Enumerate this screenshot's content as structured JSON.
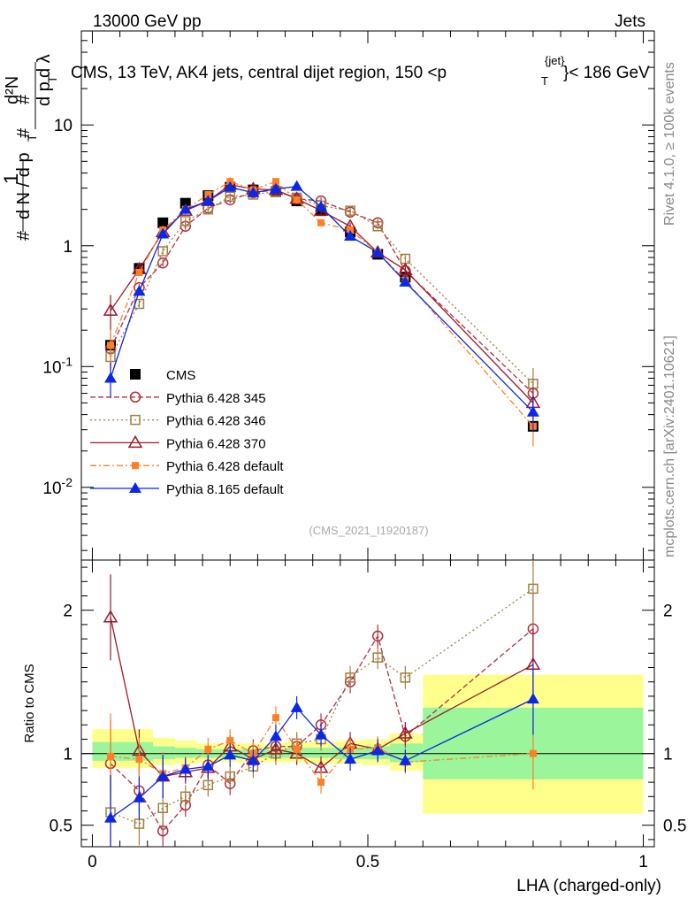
{
  "header": {
    "left": "13000 GeV pp",
    "right": "Jets",
    "title": "CMS, 13 TeV, AK4 jets, central dijet region, 150 <p",
    "title_sup": "{jet}",
    "title_sub": "T",
    "title_end": "}< 186 GeV",
    "ylabel_main": "1/(dN/dp_T) d^2N/(dp_T dλ)",
    "ylabel_ratio": "Ratio to CMS",
    "xlabel": "LHA (charged-only)",
    "side_rivet": "Rivet 4.1.0, ≥ 100k events",
    "side_mcplots": "mcplots.cern.ch [arXiv:2401.10621]",
    "watermark": "(CMS_2021_I1920187)"
  },
  "chart_data": {
    "type": "scatter",
    "main": {
      "xlim": [
        -0.02,
        1.02
      ],
      "ylim_log": [
        0.0025,
        60
      ],
      "ytick_labels": [
        "10^-2",
        "10^-1",
        "1",
        "10"
      ],
      "x": [
        0.033,
        0.085,
        0.128,
        0.169,
        0.21,
        0.25,
        0.292,
        0.333,
        0.371,
        0.415,
        0.468,
        0.518,
        0.568,
        0.8
      ],
      "series": [
        {
          "name": "CMS",
          "color": "#000000",
          "marker": "filled-square",
          "line": "none",
          "values": [
            0.15,
            0.65,
            1.55,
            2.25,
            2.6,
            3.05,
            2.9,
            2.8,
            2.35,
            1.95,
            1.3,
            0.85,
            0.55,
            0.032
          ]
        },
        {
          "name": "Pythia 6.428 345",
          "color": "#b03040",
          "marker": "open-circle",
          "line": "dashed",
          "values": [
            0.14,
            0.45,
            0.72,
            1.45,
            2.05,
            2.4,
            2.75,
            2.9,
            2.45,
            2.35,
            1.9,
            1.55,
            0.62,
            0.06
          ]
        },
        {
          "name": "Pythia 6.428 346",
          "color": "#a08040",
          "marker": "open-square",
          "line": "dotted",
          "values": [
            0.12,
            0.33,
            0.9,
            1.6,
            2.0,
            2.55,
            2.65,
            2.8,
            2.5,
            2.15,
            1.95,
            1.45,
            0.78,
            0.072
          ]
        },
        {
          "name": "Pythia 6.428 370",
          "color": "#9a1a2a",
          "marker": "open-triangle",
          "line": "solid",
          "values": [
            0.29,
            0.64,
            1.3,
            1.95,
            2.35,
            3.2,
            2.95,
            2.9,
            2.45,
            1.95,
            1.45,
            0.88,
            0.63,
            0.05
          ]
        },
        {
          "name": "Pythia 6.428 default",
          "color": "#ff7f27",
          "marker": "filled-square-small",
          "line": "dashdot",
          "values": [
            0.15,
            0.6,
            1.35,
            2.0,
            2.65,
            3.4,
            2.9,
            3.4,
            2.4,
            1.55,
            1.35,
            0.88,
            0.52,
            0.032
          ]
        },
        {
          "name": "Pythia 8.165 default",
          "color": "#0a28e6",
          "marker": "filled-triangle",
          "line": "solid",
          "values": [
            0.08,
            0.42,
            1.25,
            2.0,
            2.35,
            3.05,
            2.75,
            2.95,
            3.1,
            2.1,
            1.2,
            0.88,
            0.5,
            0.042
          ]
        }
      ]
    },
    "ratio": {
      "ylim": [
        0.35,
        2.35
      ],
      "yticks": [
        0.5,
        1,
        2
      ],
      "ytick_labels": [
        "0.5",
        "1",
        "2"
      ],
      "xticks": [
        0,
        0.5,
        1
      ],
      "xtick_labels": [
        "0",
        "0.5",
        "1"
      ],
      "bands": [
        {
          "x0": 0.0,
          "x1": 0.11,
          "yellow": [
            0.9,
            1.17
          ],
          "green": [
            0.95,
            1.08
          ]
        },
        {
          "x0": 0.11,
          "x1": 0.15,
          "yellow": [
            0.92,
            1.11
          ],
          "green": [
            0.96,
            1.05
          ]
        },
        {
          "x0": 0.15,
          "x1": 0.19,
          "yellow": [
            0.93,
            1.09
          ],
          "green": [
            0.97,
            1.04
          ]
        },
        {
          "x0": 0.19,
          "x1": 0.23,
          "yellow": [
            0.94,
            1.07
          ],
          "green": [
            0.97,
            1.03
          ]
        },
        {
          "x0": 0.23,
          "x1": 0.27,
          "yellow": [
            0.94,
            1.07
          ],
          "green": [
            0.97,
            1.03
          ]
        },
        {
          "x0": 0.27,
          "x1": 0.31,
          "yellow": [
            0.94,
            1.07
          ],
          "green": [
            0.97,
            1.03
          ]
        },
        {
          "x0": 0.31,
          "x1": 0.35,
          "yellow": [
            0.94,
            1.07
          ],
          "green": [
            0.97,
            1.03
          ]
        },
        {
          "x0": 0.35,
          "x1": 0.39,
          "yellow": [
            0.94,
            1.08
          ],
          "green": [
            0.97,
            1.04
          ]
        },
        {
          "x0": 0.39,
          "x1": 0.44,
          "yellow": [
            0.93,
            1.08
          ],
          "green": [
            0.97,
            1.04
          ]
        },
        {
          "x0": 0.44,
          "x1": 0.49,
          "yellow": [
            0.93,
            1.09
          ],
          "green": [
            0.96,
            1.04
          ]
        },
        {
          "x0": 0.49,
          "x1": 0.54,
          "yellow": [
            0.92,
            1.1
          ],
          "green": [
            0.96,
            1.05
          ]
        },
        {
          "x0": 0.54,
          "x1": 0.6,
          "yellow": [
            0.88,
            1.14
          ],
          "green": [
            0.94,
            1.07
          ]
        },
        {
          "x0": 0.6,
          "x1": 1.0,
          "yellow": [
            0.58,
            1.55
          ],
          "green": [
            0.82,
            1.32
          ]
        }
      ],
      "series": [
        {
          "name": "Pythia 6.428 345",
          "values": [
            0.93,
            0.74,
            0.46,
            0.64,
            0.92,
            0.79,
            1.02,
            1.05,
            1.05,
            1.2,
            1.5,
            1.82,
            1.12,
            1.87
          ]
        },
        {
          "name": "Pythia 6.428 346",
          "values": [
            0.59,
            0.51,
            0.62,
            0.7,
            0.78,
            0.84,
            0.91,
            1.0,
            1.07,
            1.1,
            1.53,
            1.67,
            1.53,
            2.15
          ]
        },
        {
          "name": "Pythia 6.428 370",
          "values": [
            1.95,
            1.02,
            0.84,
            0.87,
            0.9,
            1.05,
            0.96,
            1.03,
            1.0,
            0.9,
            1.07,
            1.03,
            1.14,
            1.62
          ]
        },
        {
          "name": "Pythia 6.428 default",
          "values": [
            0.98,
            0.96,
            0.86,
            0.9,
            1.03,
            1.09,
            1.0,
            1.25,
            1.03,
            0.8,
            1.03,
            1.04,
            0.94,
            1.0
          ]
        },
        {
          "name": "Pythia 8.165 default",
          "values": [
            0.55,
            0.69,
            0.84,
            0.89,
            0.91,
            0.99,
            0.95,
            1.12,
            1.32,
            1.13,
            0.96,
            1.02,
            0.95,
            1.38
          ]
        }
      ]
    }
  }
}
